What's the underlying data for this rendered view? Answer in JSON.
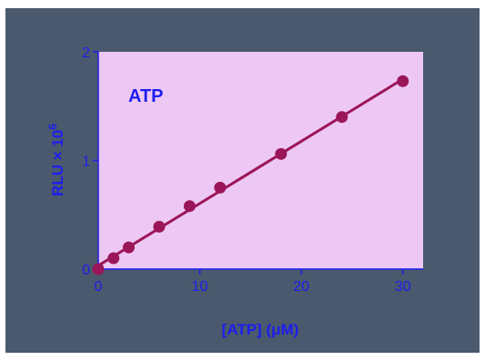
{
  "chart_data": {
    "type": "scatter",
    "title": "",
    "annotation": "ATP",
    "xlabel": "[ATP] (μM)",
    "ylabel_main": "RLU × 10",
    "ylabel_exponent": "6",
    "xlim": [
      0,
      32
    ],
    "ylim": [
      0,
      2
    ],
    "xticks": [
      0,
      10,
      20,
      30
    ],
    "yticks": [
      0,
      1,
      2
    ],
    "grid": false,
    "legend": "none",
    "series": [
      {
        "x": [
          0,
          1.5,
          3,
          6,
          9,
          12,
          18,
          24,
          30
        ],
        "y": [
          0,
          0.1,
          0.2,
          0.39,
          0.58,
          0.75,
          1.06,
          1.4,
          1.73
        ],
        "fit": "linear"
      }
    ],
    "colors": {
      "background": "#4a596d",
      "plot_area": "#eec8f4",
      "marker": "#9b1659",
      "text": "#1d1df0"
    }
  }
}
